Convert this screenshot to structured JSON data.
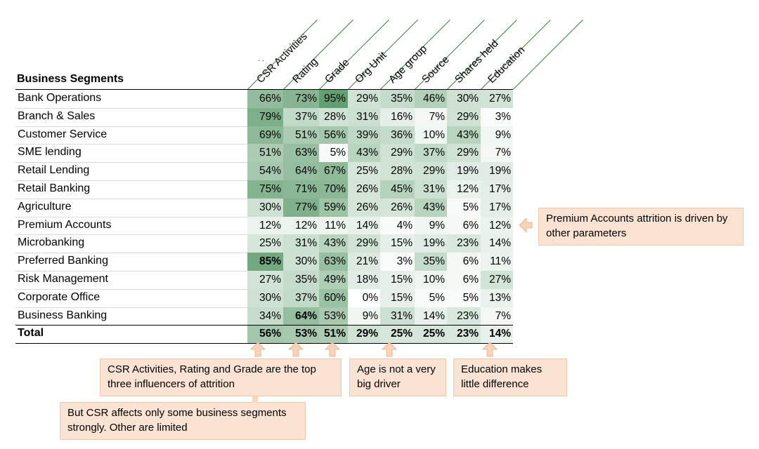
{
  "chart_data": {
    "type": "heatmap",
    "row_header": "Business Segments",
    "columns": [
      "CSR Activities",
      "Rating",
      "Grade",
      "Org Unit",
      "Age group",
      "Source",
      "Shares held",
      "Education"
    ],
    "rows": [
      {
        "label": "Bank Operations",
        "values": [
          66,
          73,
          95,
          29,
          35,
          46,
          30,
          27
        ]
      },
      {
        "label": "Branch & Sales",
        "values": [
          79,
          37,
          28,
          31,
          16,
          7,
          29,
          3
        ]
      },
      {
        "label": "Customer Service",
        "values": [
          69,
          51,
          56,
          39,
          36,
          10,
          43,
          9
        ]
      },
      {
        "label": "SME lending",
        "values": [
          51,
          63,
          5,
          43,
          29,
          37,
          29,
          7
        ]
      },
      {
        "label": "Retail Lending",
        "values": [
          54,
          64,
          67,
          25,
          28,
          29,
          19,
          19
        ]
      },
      {
        "label": "Retail Banking",
        "values": [
          75,
          71,
          70,
          26,
          45,
          31,
          12,
          17
        ]
      },
      {
        "label": "Agriculture",
        "values": [
          30,
          77,
          59,
          26,
          26,
          43,
          5,
          17
        ]
      },
      {
        "label": "Premium Accounts",
        "values": [
          12,
          12,
          11,
          14,
          4,
          9,
          6,
          12
        ]
      },
      {
        "label": "Microbanking",
        "values": [
          25,
          31,
          43,
          29,
          15,
          19,
          23,
          14
        ]
      },
      {
        "label": "Preferred Banking",
        "values": [
          85,
          30,
          63,
          21,
          3,
          35,
          6,
          11
        ]
      },
      {
        "label": "Risk Management",
        "values": [
          27,
          35,
          49,
          18,
          15,
          10,
          6,
          27
        ]
      },
      {
        "label": "Corporate Office",
        "values": [
          30,
          37,
          60,
          0,
          15,
          5,
          5,
          13
        ]
      },
      {
        "label": "Business Banking",
        "values": [
          34,
          64,
          53,
          9,
          31,
          14,
          23,
          7
        ]
      }
    ],
    "total": {
      "label": "Total",
      "values": [
        56,
        53,
        51,
        29,
        25,
        25,
        23,
        14
      ]
    },
    "bold_cells": [
      [
        9,
        0
      ],
      [
        12,
        1
      ]
    ],
    "unit": "%",
    "color_scale": {
      "low": "#ffffff",
      "high": "#5a9a6a"
    },
    "annotations": [
      "Premium Accounts attrition is driven by other parameters",
      "CSR Activities, Rating and Grade are the top three influencers of attrition",
      "But CSR affects only some business segments strongly. Other are limited",
      "Age is not a very big driver",
      "Education makes little difference"
    ],
    "header_marks": ". ."
  },
  "colors": {
    "callout_bg": "#fbe3d3",
    "callout_arrow": "#f7d3b8",
    "header_line": "#3a7a3a"
  }
}
